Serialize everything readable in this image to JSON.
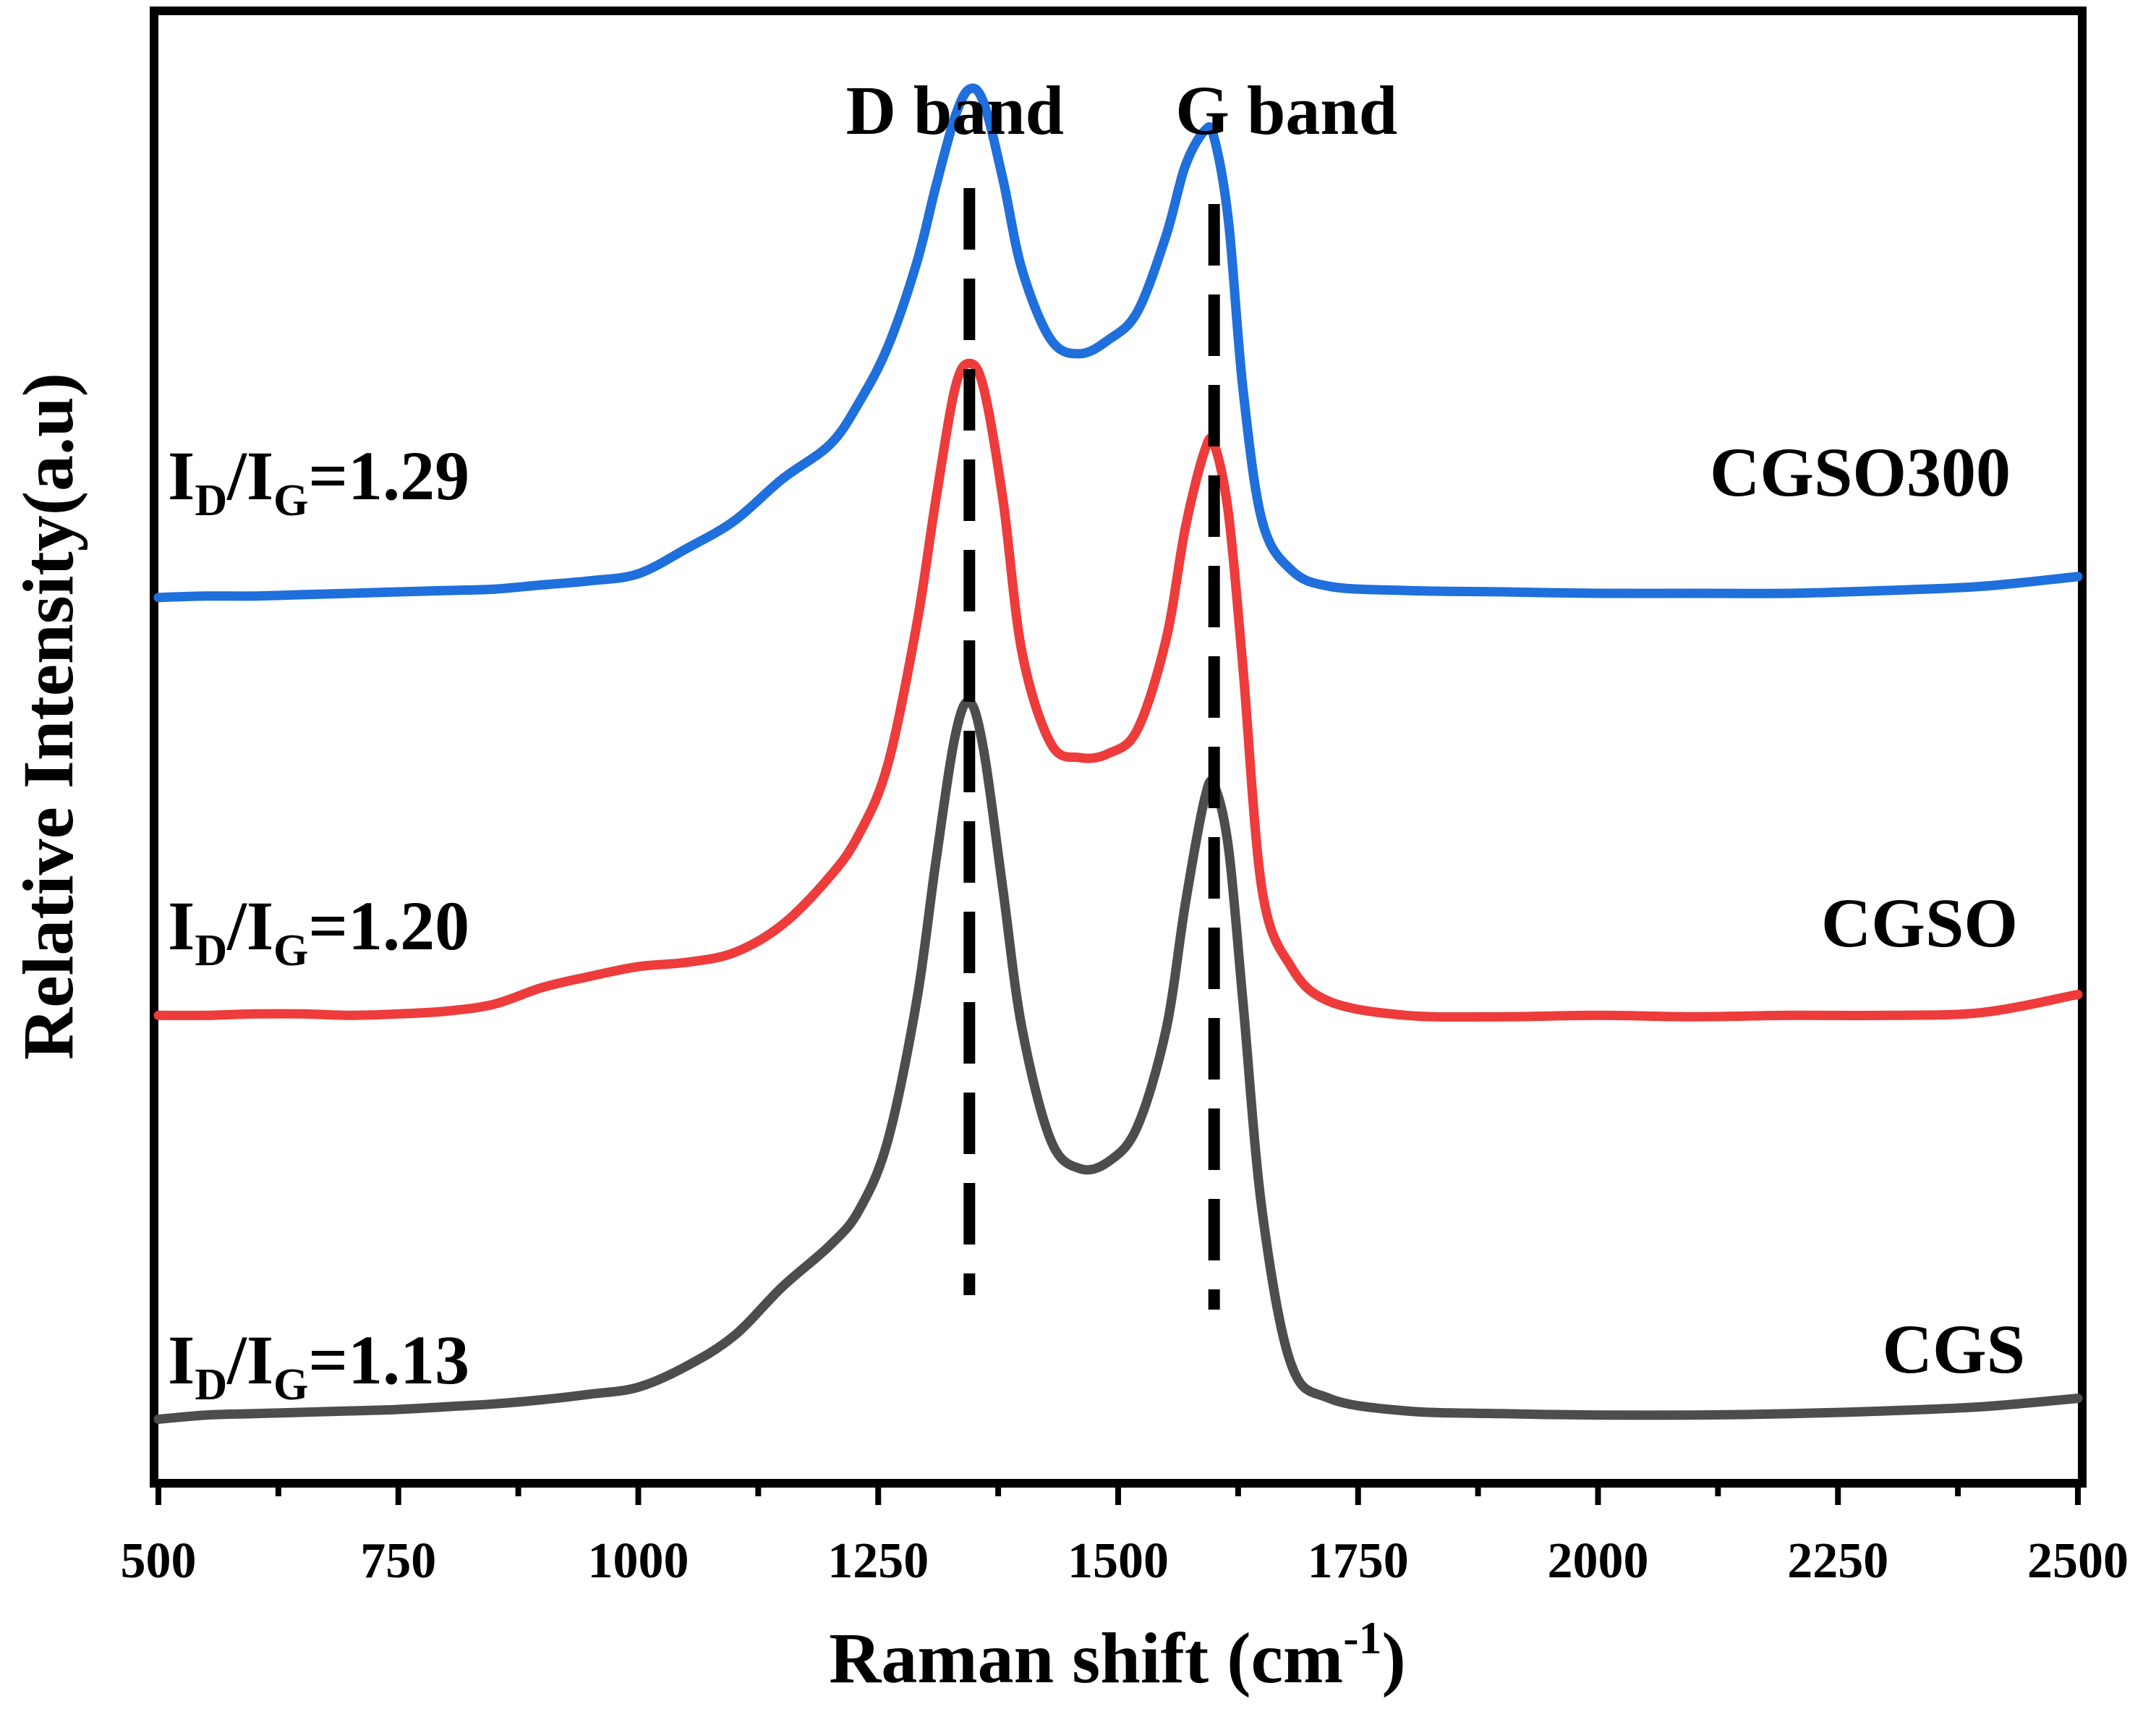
{
  "chart_data": {
    "type": "line",
    "title": "",
    "xlabel": "Raman shift (cm",
    "xlabel_sup": "-1",
    "xlabel_end": ")",
    "ylabel": "Relative Intensity(a.u)",
    "xlim": [
      500,
      2500
    ],
    "ylim": [
      0,
      100
    ],
    "xticks": [
      500,
      750,
      1000,
      1250,
      1500,
      1750,
      2000,
      2250,
      2500
    ],
    "xtick_labels": [
      "500",
      "750",
      "1000",
      "1250",
      "1500",
      "1750",
      "2000",
      "2250",
      "2500"
    ],
    "grid": false,
    "annotations": {
      "d_band": {
        "label": "D band",
        "x": 1345
      },
      "g_band": {
        "label": "G band",
        "x": 1600
      }
    },
    "series": [
      {
        "name": "CGS",
        "color": "#4d4d4d",
        "ratio_main": "I",
        "ratio_sub1": "D",
        "ratio_slash": "/I",
        "ratio_sub2": "G",
        "ratio_value": "=1.13",
        "x": [
          500,
          550,
          600,
          650,
          700,
          750,
          800,
          850,
          900,
          950,
          1000,
          1050,
          1100,
          1150,
          1200,
          1230,
          1260,
          1290,
          1310,
          1330,
          1345,
          1360,
          1380,
          1400,
          1430,
          1460,
          1490,
          1520,
          1550,
          1570,
          1590,
          1600,
          1615,
          1630,
          1650,
          1680,
          1720,
          1800,
          1900,
          2000,
          2100,
          2200,
          2300,
          2400,
          2500
        ],
        "y": [
          2.0,
          2.3,
          2.4,
          2.5,
          2.6,
          2.7,
          2.9,
          3.1,
          3.4,
          3.8,
          4.3,
          5.8,
          8.0,
          11.5,
          14.5,
          17.0,
          22.0,
          32.0,
          42.0,
          51.0,
          53.5,
          50.0,
          40.0,
          30.0,
          22.0,
          20.0,
          20.5,
          23.0,
          30.0,
          39.0,
          46.5,
          47.5,
          43.0,
          32.0,
          17.0,
          6.0,
          3.5,
          2.6,
          2.4,
          2.3,
          2.3,
          2.4,
          2.6,
          2.9,
          3.5
        ]
      },
      {
        "name": "CGSO",
        "color": "#ee3b3b",
        "ratio_main": "I",
        "ratio_sub1": "D",
        "ratio_slash": "/I",
        "ratio_sub2": "G",
        "ratio_value": "=1.20",
        "x": [
          500,
          550,
          600,
          650,
          700,
          750,
          800,
          850,
          900,
          950,
          1000,
          1050,
          1100,
          1150,
          1200,
          1230,
          1260,
          1290,
          1310,
          1330,
          1345,
          1360,
          1380,
          1400,
          1430,
          1460,
          1490,
          1520,
          1550,
          1570,
          1590,
          1600,
          1615,
          1630,
          1650,
          1680,
          1720,
          1800,
          1900,
          2000,
          2100,
          2200,
          2300,
          2400,
          2500
        ],
        "y": [
          31.0,
          31.0,
          31.1,
          31.1,
          31.0,
          31.1,
          31.3,
          31.8,
          33.0,
          33.8,
          34.5,
          34.8,
          35.5,
          37.5,
          41.0,
          44.0,
          49.0,
          59.0,
          68.0,
          76.0,
          77.8,
          76.0,
          68.0,
          57.0,
          50.5,
          49.5,
          49.8,
          51.5,
          58.0,
          66.0,
          71.5,
          72.0,
          67.0,
          56.0,
          40.0,
          34.5,
          32.0,
          31.0,
          30.9,
          31.0,
          30.9,
          31.0,
          31.0,
          31.2,
          32.5
        ]
      },
      {
        "name": "CGSO300",
        "color": "#1f6fdc",
        "ratio_main": "I",
        "ratio_sub1": "D",
        "ratio_slash": "/I",
        "ratio_sub2": "G",
        "ratio_value": "=1.29",
        "x": [
          500,
          550,
          600,
          650,
          700,
          750,
          800,
          850,
          900,
          950,
          1000,
          1050,
          1100,
          1150,
          1200,
          1230,
          1260,
          1290,
          1310,
          1330,
          1345,
          1360,
          1380,
          1400,
          1430,
          1460,
          1490,
          1520,
          1550,
          1570,
          1590,
          1600,
          1615,
          1630,
          1650,
          1680,
          1720,
          1800,
          1900,
          2000,
          2100,
          2200,
          2300,
          2400,
          2500
        ],
        "y": [
          61.0,
          61.1,
          61.1,
          61.2,
          61.3,
          61.4,
          61.5,
          61.6,
          61.9,
          62.2,
          62.7,
          64.5,
          66.5,
          69.5,
          72.0,
          75.0,
          79.0,
          85.0,
          90.5,
          95.5,
          97.5,
          96.5,
          91.0,
          84.5,
          79.5,
          78.5,
          79.5,
          81.5,
          87.0,
          92.0,
          94.5,
          94.0,
          88.0,
          76.0,
          66.5,
          63.0,
          61.8,
          61.5,
          61.4,
          61.3,
          61.3,
          61.3,
          61.5,
          61.8,
          62.5
        ]
      }
    ]
  }
}
